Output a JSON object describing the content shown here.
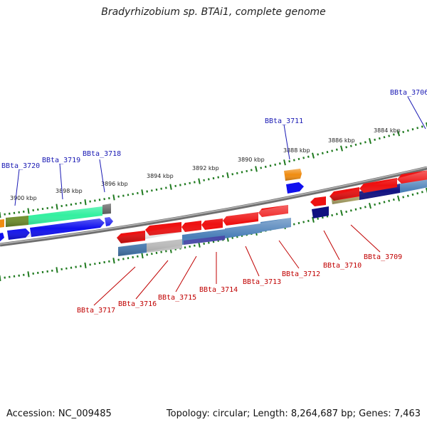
{
  "title": "Bradyrhizobium sp. BTAi1, complete genome",
  "footer": {
    "accession": "Accession: NC_009485",
    "topology": "Topology: circular; Length: 8,264,687 bp; Genes: 7,463"
  },
  "colors": {
    "backbone": "#7a7a7a",
    "tick": "#1f7a1f",
    "label_forward": "#1a1ab4",
    "label_reverse": "#c00000",
    "gene_red": "#ee1111",
    "gene_blue": "#1010ee",
    "gene_steel": "#4a7fb8",
    "gene_orange": "#f08c10",
    "gene_olive": "#6f8f2c",
    "gene_mint": "#33f0a0",
    "gene_navy": "#101080",
    "gene_khaki": "#b8b070",
    "gene_grey": "#c0c0c0",
    "gene_slate": "#555555"
  },
  "kbp_labels": [
    "3900 kbp",
    "3898 kbp",
    "3896 kbp",
    "3894 kbp",
    "3892 kbp",
    "3890 kbp",
    "3888 kbp",
    "3886 kbp",
    "3884 kbp"
  ],
  "gene_labels_forward": [
    "BBta_3720",
    "BBta_3719",
    "BBta_3718",
    "BBta_3711",
    "BBta_3706"
  ],
  "gene_labels_reverse": [
    "BBta_3717",
    "BBta_3716",
    "BBta_3715",
    "BBta_3714",
    "BBta_3713",
    "BBta_3712",
    "BBta_3710",
    "BBta_3709"
  ]
}
